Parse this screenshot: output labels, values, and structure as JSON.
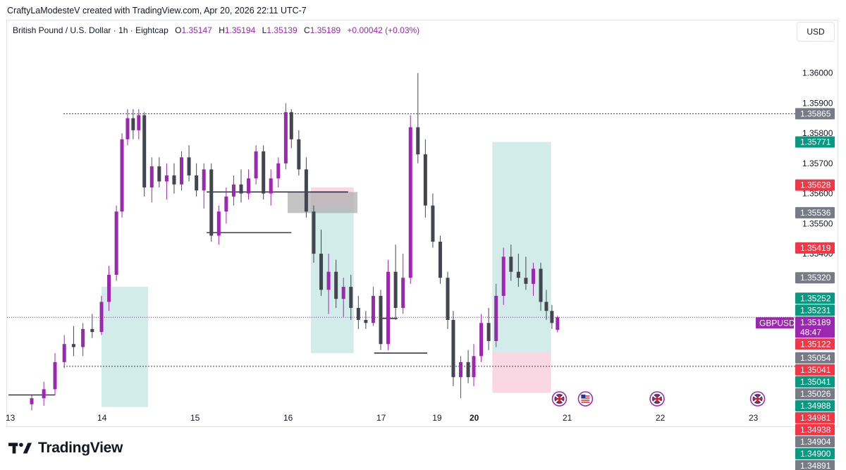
{
  "credit": "CraftyLaModesteV created with TradingView.com, Apr 20, 2026 22:11 UTC-7",
  "header": {
    "symbol": "British Pound / U.S. Dollar · 1h · Eightcap",
    "o_label": "O",
    "o_value": "1.35147",
    "h_label": "H",
    "h_value": "1.35194",
    "l_label": "L",
    "l_value": "1.35139",
    "c_label": "C",
    "c_value": "1.35189",
    "change": "+0.00042 (+0.03%)"
  },
  "currency": "USD",
  "brand": "TradingView",
  "colors": {
    "bull": "#9c27b0",
    "bear": "#434651",
    "green_label": "#089981",
    "red_label": "#f23645",
    "gray_label": "#787b86",
    "symbol_label": "#9c27b0",
    "target_zone": "#b2dfdb",
    "stop_zone": "#f8bbd0"
  },
  "chart_data": {
    "type": "candlestick",
    "symbol_tag": "GBPUSD",
    "countdown": "48:47",
    "ylim": [
      1.3489,
      1.3606
    ],
    "y_ticks": [
      {
        "value": 1.36,
        "label": "1.36000"
      },
      {
        "value": 1.359,
        "label": "1.35900"
      },
      {
        "value": 1.358,
        "label": "1.35800"
      },
      {
        "value": 1.357,
        "label": "1.35700"
      },
      {
        "value": 1.356,
        "label": "1.35600"
      },
      {
        "value": 1.355,
        "label": "1.35500"
      },
      {
        "value": 1.354,
        "label": "1.35400"
      }
    ],
    "x_ticks": [
      {
        "label": "13",
        "bold": false
      },
      {
        "label": "14",
        "bold": false
      },
      {
        "label": "15",
        "bold": false
      },
      {
        "label": "16",
        "bold": false
      },
      {
        "label": "17",
        "bold": false
      },
      {
        "label": "19",
        "bold": false
      },
      {
        "label": "20",
        "bold": true
      },
      {
        "label": "21",
        "bold": false
      },
      {
        "label": "22",
        "bold": false
      },
      {
        "label": "23",
        "bold": false
      }
    ],
    "price_labels": [
      {
        "value": 1.35865,
        "label": "1.35865",
        "kind": "gray"
      },
      {
        "value": 1.35771,
        "label": "1.35771",
        "kind": "green"
      },
      {
        "value": 1.35628,
        "label": "1.35628",
        "kind": "red"
      },
      {
        "value": 1.35536,
        "label": "1.35536",
        "kind": "gray"
      },
      {
        "value": 1.35419,
        "label": "1.35419",
        "kind": "red"
      },
      {
        "value": 1.3532,
        "label": "1.35320",
        "kind": "gray"
      },
      {
        "value": 1.35252,
        "label": "1.35252",
        "kind": "green"
      },
      {
        "value": 1.35231,
        "label": "1.35231",
        "kind": "green"
      },
      {
        "value": 1.35189,
        "label": "1.35189",
        "kind": "symbol"
      },
      {
        "value": 1.35122,
        "label": "1.35122",
        "kind": "red"
      },
      {
        "value": 1.35054,
        "label": "1.35054",
        "kind": "gray"
      },
      {
        "value": 1.35041,
        "label": "1.35041",
        "kind": "red"
      },
      {
        "value": 1.35041,
        "label": "1.35041",
        "kind": "green"
      },
      {
        "value": 1.35026,
        "label": "1.35026",
        "kind": "gray"
      },
      {
        "value": 1.34988,
        "label": "1.34988",
        "kind": "green"
      },
      {
        "value": 1.34981,
        "label": "1.34981",
        "kind": "red"
      },
      {
        "value": 1.34938,
        "label": "1.34938",
        "kind": "red"
      },
      {
        "value": 1.34904,
        "label": "1.34904",
        "kind": "gray"
      },
      {
        "value": 1.349,
        "label": "1.34900",
        "kind": "green"
      },
      {
        "value": 1.34891,
        "label": "1.34891",
        "kind": "gray"
      }
    ],
    "dotted_levels": [
      1.35865,
      1.35026
    ],
    "segments": [
      {
        "day_from": 0.0,
        "day_to": 0.5,
        "price": 1.34931
      },
      {
        "day_from": 2.13,
        "day_to": 3.65,
        "price": 1.35605
      },
      {
        "day_from": 2.13,
        "day_to": 3.04,
        "price": 1.3547
      },
      {
        "day_from": 4.0,
        "day_to": 4.18,
        "price": 1.35185
      },
      {
        "day_from": 3.93,
        "day_to": 4.5,
        "price": 1.3507
      }
    ],
    "zones": [
      {
        "kind": "target",
        "day_from": 1.0,
        "day_to": 1.5,
        "top": 1.3529,
        "bottom": 1.34891
      },
      {
        "kind": "target",
        "day_from": 3.25,
        "day_to": 3.71,
        "top": 1.3556,
        "bottom": 1.3507
      },
      {
        "kind": "stop",
        "day_from": 3.25,
        "day_to": 3.71,
        "top": 1.3562,
        "bottom": 1.3556
      },
      {
        "kind": "gray",
        "day_from": 3.0,
        "day_to": 3.75,
        "top": 1.35605,
        "bottom": 1.35535
      },
      {
        "kind": "target",
        "day_from": 5.2,
        "day_to": 5.83,
        "top": 1.35771,
        "bottom": 1.35185
      },
      {
        "kind": "target",
        "day_from": 5.2,
        "day_to": 5.83,
        "top": 1.35185,
        "bottom": 1.35074
      },
      {
        "kind": "stop",
        "day_from": 5.2,
        "day_to": 5.83,
        "top": 1.35074,
        "bottom": 1.34938
      }
    ],
    "candles": [
      {
        "day": 0.25,
        "o": 1.349,
        "h": 1.3493,
        "l": 1.3488,
        "c": 1.3492
      },
      {
        "day": 0.38,
        "o": 1.3492,
        "h": 1.34975,
        "l": 1.34895,
        "c": 1.3495
      },
      {
        "day": 0.5,
        "o": 1.3495,
        "h": 1.3507,
        "l": 1.3493,
        "c": 1.3504
      },
      {
        "day": 0.6,
        "o": 1.3504,
        "h": 1.3513,
        "l": 1.3502,
        "c": 1.351
      },
      {
        "day": 0.7,
        "o": 1.351,
        "h": 1.3516,
        "l": 1.3506,
        "c": 1.3509
      },
      {
        "day": 0.8,
        "o": 1.3509,
        "h": 1.3517,
        "l": 1.3506,
        "c": 1.3515
      },
      {
        "day": 0.9,
        "o": 1.3515,
        "h": 1.352,
        "l": 1.3512,
        "c": 1.3514
      },
      {
        "day": 1.0,
        "o": 1.3514,
        "h": 1.3526,
        "l": 1.3513,
        "c": 1.3524
      },
      {
        "day": 1.08,
        "o": 1.3524,
        "h": 1.3536,
        "l": 1.3521,
        "c": 1.3533
      },
      {
        "day": 1.16,
        "o": 1.3533,
        "h": 1.3556,
        "l": 1.3531,
        "c": 1.3554
      },
      {
        "day": 1.22,
        "o": 1.3554,
        "h": 1.358,
        "l": 1.3552,
        "c": 1.3578
      },
      {
        "day": 1.28,
        "o": 1.3578,
        "h": 1.3588,
        "l": 1.3576,
        "c": 1.3585
      },
      {
        "day": 1.34,
        "o": 1.3585,
        "h": 1.3588,
        "l": 1.3578,
        "c": 1.3581
      },
      {
        "day": 1.4,
        "o": 1.3581,
        "h": 1.3588,
        "l": 1.3578,
        "c": 1.3586
      },
      {
        "day": 1.46,
        "o": 1.3586,
        "h": 1.3587,
        "l": 1.3559,
        "c": 1.3562
      },
      {
        "day": 1.54,
        "o": 1.3562,
        "h": 1.3572,
        "l": 1.3557,
        "c": 1.3569
      },
      {
        "day": 1.62,
        "o": 1.3569,
        "h": 1.3572,
        "l": 1.3562,
        "c": 1.3564
      },
      {
        "day": 1.7,
        "o": 1.3564,
        "h": 1.357,
        "l": 1.3558,
        "c": 1.3566
      },
      {
        "day": 1.78,
        "o": 1.3566,
        "h": 1.357,
        "l": 1.356,
        "c": 1.3563
      },
      {
        "day": 1.86,
        "o": 1.3563,
        "h": 1.3574,
        "l": 1.3561,
        "c": 1.3572
      },
      {
        "day": 1.94,
        "o": 1.3572,
        "h": 1.3576,
        "l": 1.3564,
        "c": 1.3566
      },
      {
        "day": 2.02,
        "o": 1.3566,
        "h": 1.357,
        "l": 1.3559,
        "c": 1.3561
      },
      {
        "day": 2.1,
        "o": 1.3561,
        "h": 1.357,
        "l": 1.3555,
        "c": 1.3568
      },
      {
        "day": 2.18,
        "o": 1.3568,
        "h": 1.357,
        "l": 1.3544,
        "c": 1.3546
      },
      {
        "day": 2.26,
        "o": 1.3546,
        "h": 1.3556,
        "l": 1.3543,
        "c": 1.3554
      },
      {
        "day": 2.34,
        "o": 1.3554,
        "h": 1.3562,
        "l": 1.355,
        "c": 1.3559
      },
      {
        "day": 2.42,
        "o": 1.3559,
        "h": 1.3566,
        "l": 1.3556,
        "c": 1.3563
      },
      {
        "day": 2.5,
        "o": 1.3563,
        "h": 1.3568,
        "l": 1.3557,
        "c": 1.356
      },
      {
        "day": 2.58,
        "o": 1.356,
        "h": 1.3568,
        "l": 1.3558,
        "c": 1.3565
      },
      {
        "day": 2.66,
        "o": 1.3565,
        "h": 1.3576,
        "l": 1.3563,
        "c": 1.3574
      },
      {
        "day": 2.74,
        "o": 1.3574,
        "h": 1.3576,
        "l": 1.3558,
        "c": 1.356
      },
      {
        "day": 2.82,
        "o": 1.356,
        "h": 1.3568,
        "l": 1.3556,
        "c": 1.3565
      },
      {
        "day": 2.9,
        "o": 1.3565,
        "h": 1.3572,
        "l": 1.3562,
        "c": 1.357
      },
      {
        "day": 2.98,
        "o": 1.357,
        "h": 1.359,
        "l": 1.3568,
        "c": 1.3587
      },
      {
        "day": 3.04,
        "o": 1.3587,
        "h": 1.3588,
        "l": 1.3575,
        "c": 1.3578
      },
      {
        "day": 3.12,
        "o": 1.3578,
        "h": 1.3581,
        "l": 1.3566,
        "c": 1.3568
      },
      {
        "day": 3.2,
        "o": 1.3568,
        "h": 1.3572,
        "l": 1.3552,
        "c": 1.3554
      },
      {
        "day": 3.28,
        "o": 1.3554,
        "h": 1.3556,
        "l": 1.3537,
        "c": 1.354
      },
      {
        "day": 3.36,
        "o": 1.354,
        "h": 1.3548,
        "l": 1.3526,
        "c": 1.3528
      },
      {
        "day": 3.44,
        "o": 1.3528,
        "h": 1.354,
        "l": 1.352,
        "c": 1.3534
      },
      {
        "day": 3.52,
        "o": 1.3534,
        "h": 1.3538,
        "l": 1.3522,
        "c": 1.3525
      },
      {
        "day": 3.6,
        "o": 1.3525,
        "h": 1.3532,
        "l": 1.3519,
        "c": 1.3529
      },
      {
        "day": 3.68,
        "o": 1.3529,
        "h": 1.3533,
        "l": 1.3518,
        "c": 1.3522
      },
      {
        "day": 3.76,
        "o": 1.3522,
        "h": 1.3526,
        "l": 1.3515,
        "c": 1.3518
      },
      {
        "day": 3.84,
        "o": 1.3518,
        "h": 1.3521,
        "l": 1.3515,
        "c": 1.3517
      },
      {
        "day": 3.92,
        "o": 1.3517,
        "h": 1.3529,
        "l": 1.3516,
        "c": 1.3526
      },
      {
        "day": 4.0,
        "o": 1.3526,
        "h": 1.3528,
        "l": 1.3508,
        "c": 1.351
      },
      {
        "day": 4.08,
        "o": 1.351,
        "h": 1.3538,
        "l": 1.3508,
        "c": 1.3534
      },
      {
        "day": 4.16,
        "o": 1.3534,
        "h": 1.3543,
        "l": 1.3518,
        "c": 1.3522
      },
      {
        "day": 4.24,
        "o": 1.3522,
        "h": 1.354,
        "l": 1.352,
        "c": 1.3532
      },
      {
        "day": 4.32,
        "o": 1.3532,
        "h": 1.3586,
        "l": 1.353,
        "c": 1.3582
      },
      {
        "day": 4.4,
        "o": 1.3582,
        "h": 1.36,
        "l": 1.357,
        "c": 1.3573
      },
      {
        "day": 4.48,
        "o": 1.3573,
        "h": 1.3578,
        "l": 1.3552,
        "c": 1.3556
      },
      {
        "day": 4.56,
        "o": 1.3556,
        "h": 1.356,
        "l": 1.3542,
        "c": 1.3544
      },
      {
        "day": 4.64,
        "o": 1.3544,
        "h": 1.3546,
        "l": 1.353,
        "c": 1.3532
      },
      {
        "day": 4.72,
        "o": 1.3532,
        "h": 1.3534,
        "l": 1.3515,
        "c": 1.3518
      },
      {
        "day": 4.78,
        "o": 1.3518,
        "h": 1.3521,
        "l": 1.3496,
        "c": 1.3499
      },
      {
        "day": 4.86,
        "o": 1.3499,
        "h": 1.3506,
        "l": 1.3492,
        "c": 1.3504
      },
      {
        "day": 4.94,
        "o": 1.3504,
        "h": 1.3508,
        "l": 1.3497,
        "c": 1.3499
      },
      {
        "day": 5.0,
        "o": 1.3499,
        "h": 1.351,
        "l": 1.3496,
        "c": 1.3506
      },
      {
        "day": 5.08,
        "o": 1.3506,
        "h": 1.352,
        "l": 1.3504,
        "c": 1.3517
      },
      {
        "day": 5.16,
        "o": 1.3517,
        "h": 1.3522,
        "l": 1.3508,
        "c": 1.3511
      },
      {
        "day": 5.24,
        "o": 1.3511,
        "h": 1.353,
        "l": 1.3509,
        "c": 1.3526
      },
      {
        "day": 5.32,
        "o": 1.3526,
        "h": 1.3542,
        "l": 1.3523,
        "c": 1.3539
      },
      {
        "day": 5.4,
        "o": 1.3539,
        "h": 1.3543,
        "l": 1.3531,
        "c": 1.3534
      },
      {
        "day": 5.48,
        "o": 1.3534,
        "h": 1.354,
        "l": 1.3529,
        "c": 1.3532
      },
      {
        "day": 5.56,
        "o": 1.3532,
        "h": 1.3539,
        "l": 1.3528,
        "c": 1.353
      },
      {
        "day": 5.64,
        "o": 1.353,
        "h": 1.3537,
        "l": 1.3526,
        "c": 1.3535
      },
      {
        "day": 5.72,
        "o": 1.3535,
        "h": 1.3537,
        "l": 1.3521,
        "c": 1.3524
      },
      {
        "day": 5.78,
        "o": 1.3524,
        "h": 1.3528,
        "l": 1.3518,
        "c": 1.3521
      },
      {
        "day": 5.84,
        "o": 1.3521,
        "h": 1.3523,
        "l": 1.3515,
        "c": 1.3517
      },
      {
        "day": 5.9,
        "o": 1.35147,
        "h": 1.35194,
        "l": 1.35139,
        "c": 1.35189
      }
    ],
    "events": [
      {
        "day": 5.92,
        "flag": "uk"
      },
      {
        "day": 6.2,
        "flag": "us"
      },
      {
        "day": 6.97,
        "flag": "uk"
      },
      {
        "day": 8.05,
        "flag": "uk"
      }
    ]
  }
}
